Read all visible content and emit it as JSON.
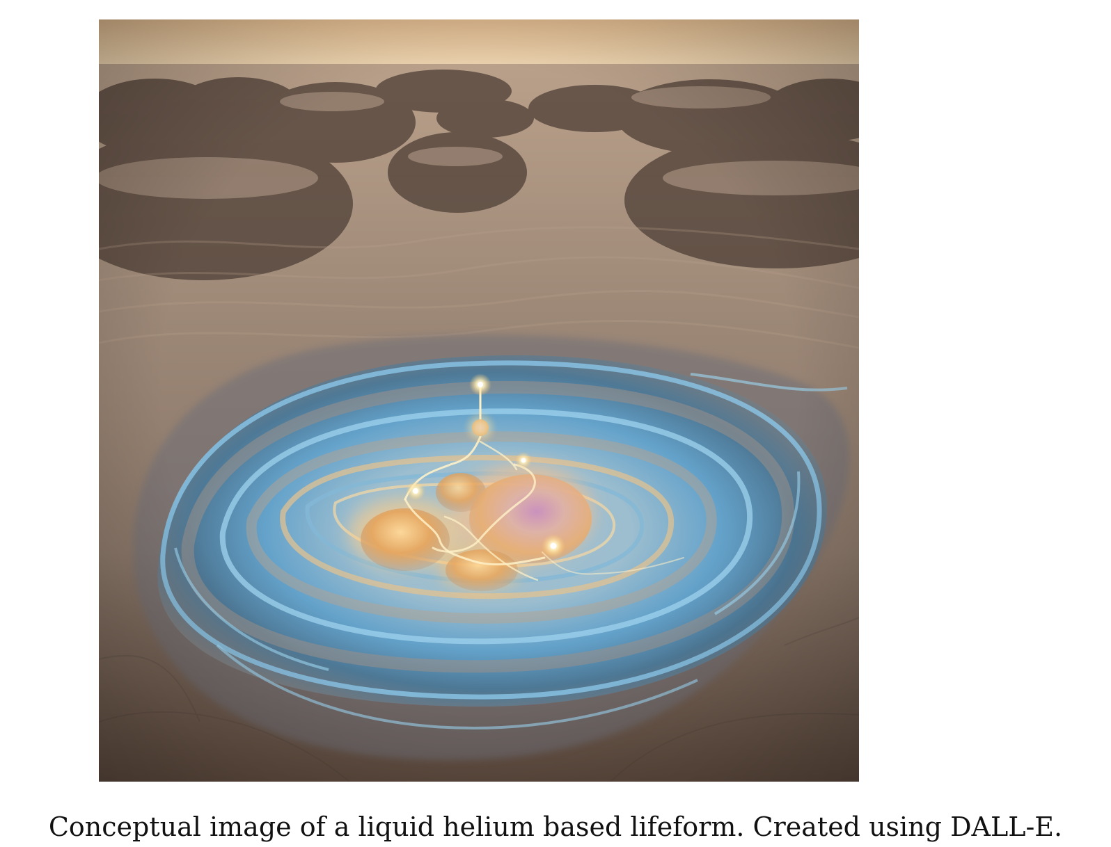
{
  "figure": {
    "caption": "Conceptual image of a liquid helium based lifeform. Created using DALL-E.",
    "image": {
      "subject": "liquid-helium-lifeform-illustration",
      "palette": {
        "sky": "#e5c69f",
        "sand": "#8b7a69",
        "dark_sand": "#4d3e35",
        "liquid": "#77b9df",
        "glow": "#ffd08a"
      }
    }
  }
}
